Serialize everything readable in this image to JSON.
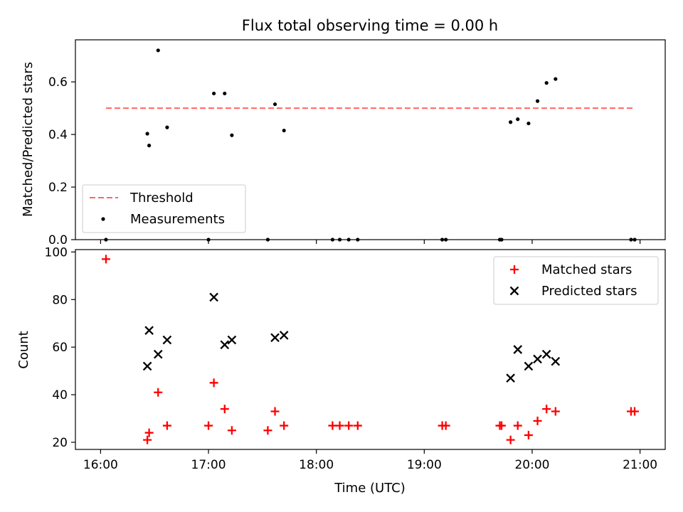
{
  "chart_data": [
    {
      "type": "scatter",
      "title": "Flux total observing time = 0.00 h",
      "xlabel": "",
      "ylabel": "Matched/Predicted stars",
      "xlim": [
        "15:46",
        "21:14"
      ],
      "ylim": [
        0,
        0.76
      ],
      "yticks": [
        0.0,
        0.2,
        0.4,
        0.6
      ],
      "ytick_labels": [
        "0.0",
        "0.2",
        "0.4",
        "0.6"
      ],
      "xticks": [
        "16:00",
        "17:00",
        "18:00",
        "19:00",
        "20:00",
        "21:00"
      ],
      "legend_position": "lower-left",
      "threshold": {
        "name": "Threshold",
        "value": 0.5,
        "x_range": [
          "16:03",
          "20:56"
        ],
        "color": "#ff6666",
        "style": "dashed"
      },
      "series": [
        {
          "name": "Measurements",
          "color": "#000000",
          "marker": "dot",
          "points": [
            [
              "16:03",
              0.0
            ],
            [
              "16:26",
              0.403
            ],
            [
              "16:27",
              0.358
            ],
            [
              "16:32",
              0.72
            ],
            [
              "16:37",
              0.427
            ],
            [
              "17:00",
              0.0
            ],
            [
              "17:03",
              0.556
            ],
            [
              "17:09",
              0.556
            ],
            [
              "17:13",
              0.397
            ],
            [
              "17:33",
              0.0
            ],
            [
              "17:37",
              0.515
            ],
            [
              "17:42",
              0.415
            ],
            [
              "18:09",
              0.0
            ],
            [
              "18:13",
              0.0
            ],
            [
              "18:18",
              0.0
            ],
            [
              "18:23",
              0.0
            ],
            [
              "19:10",
              0.0
            ],
            [
              "19:12",
              0.0
            ],
            [
              "19:42",
              0.0
            ],
            [
              "19:43",
              0.0
            ],
            [
              "19:48",
              0.447
            ],
            [
              "19:52",
              0.458
            ],
            [
              "19:58",
              0.442
            ],
            [
              "20:03",
              0.527
            ],
            [
              "20:08",
              0.596
            ],
            [
              "20:13",
              0.611
            ],
            [
              "20:55",
              0.0
            ],
            [
              "20:57",
              0.0
            ]
          ]
        }
      ]
    },
    {
      "type": "scatter",
      "title": "",
      "xlabel": "Time (UTC)",
      "ylabel": "Count",
      "xlim": [
        "15:46",
        "21:14"
      ],
      "ylim": [
        17,
        101
      ],
      "yticks": [
        20,
        40,
        60,
        80,
        100
      ],
      "ytick_labels": [
        "20",
        "40",
        "60",
        "80",
        "100"
      ],
      "xticks": [
        "16:00",
        "17:00",
        "18:00",
        "19:00",
        "20:00",
        "21:00"
      ],
      "xtick_labels": [
        "16:00",
        "17:00",
        "18:00",
        "19:00",
        "20:00",
        "21:00"
      ],
      "legend_position": "upper-right",
      "series": [
        {
          "name": "Matched stars",
          "color": "#ff0000",
          "marker": "plus",
          "points": [
            [
              "16:03",
              97
            ],
            [
              "16:26",
              21
            ],
            [
              "16:27",
              24
            ],
            [
              "16:32",
              41
            ],
            [
              "16:37",
              27
            ],
            [
              "17:00",
              27
            ],
            [
              "17:03",
              45
            ],
            [
              "17:09",
              34
            ],
            [
              "17:13",
              25
            ],
            [
              "17:33",
              25
            ],
            [
              "17:37",
              33
            ],
            [
              "17:42",
              27
            ],
            [
              "18:09",
              27
            ],
            [
              "18:13",
              27
            ],
            [
              "18:18",
              27
            ],
            [
              "18:23",
              27
            ],
            [
              "19:10",
              27
            ],
            [
              "19:12",
              27
            ],
            [
              "19:42",
              27
            ],
            [
              "19:43",
              27
            ],
            [
              "19:48",
              21
            ],
            [
              "19:52",
              27
            ],
            [
              "19:58",
              23
            ],
            [
              "20:03",
              29
            ],
            [
              "20:08",
              34
            ],
            [
              "20:13",
              33
            ],
            [
              "20:55",
              33
            ],
            [
              "20:57",
              33
            ]
          ]
        },
        {
          "name": "Predicted stars",
          "color": "#000000",
          "marker": "x",
          "points": [
            [
              "16:26",
              52
            ],
            [
              "16:27",
              67
            ],
            [
              "16:32",
              57
            ],
            [
              "16:37",
              63
            ],
            [
              "17:03",
              81
            ],
            [
              "17:09",
              61
            ],
            [
              "17:13",
              63
            ],
            [
              "17:37",
              64
            ],
            [
              "17:42",
              65
            ],
            [
              "19:48",
              47
            ],
            [
              "19:52",
              59
            ],
            [
              "19:58",
              52
            ],
            [
              "20:03",
              55
            ],
            [
              "20:08",
              57
            ],
            [
              "20:13",
              54
            ]
          ]
        }
      ]
    }
  ]
}
